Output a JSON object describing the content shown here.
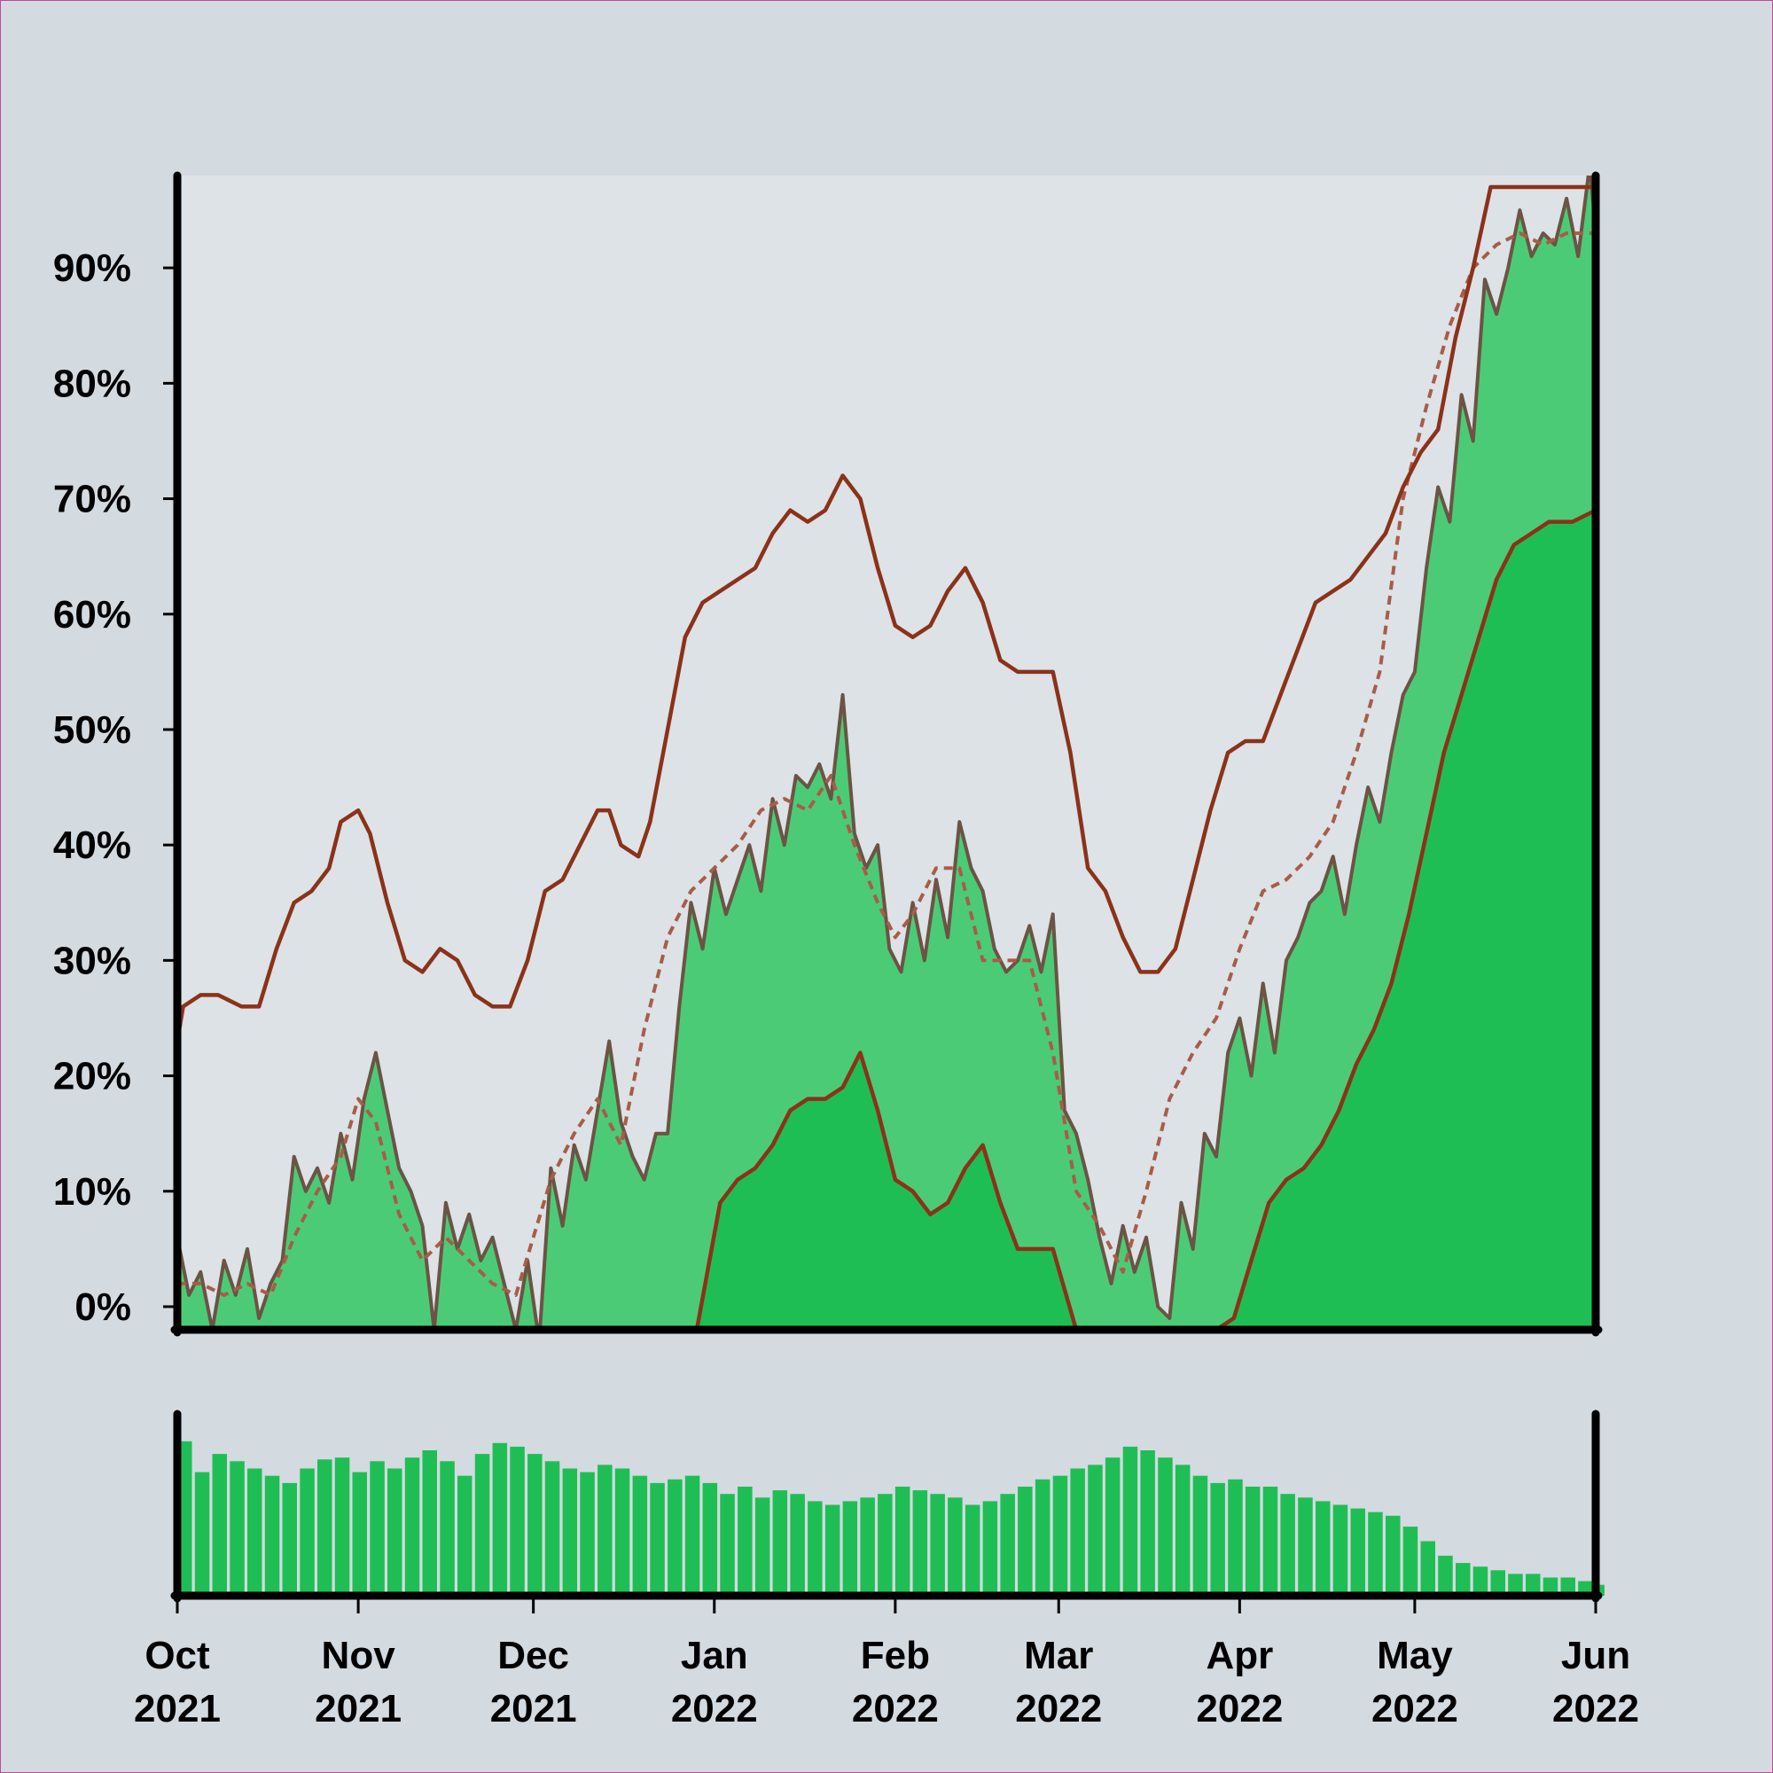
{
  "colors": {
    "background": "#d3dae0",
    "plot_background": "#dde3e7",
    "ci_band": "#dce2e6",
    "mid_fill": "#4ccb77",
    "low_fill": "#1fbe55",
    "raw_line": "#6b5443",
    "ci_line": "#8b3219",
    "trend_line": "#a85c48",
    "volume_bar": "#1fbe55",
    "axis": "#000000",
    "frame_border": "#c04a9a"
  },
  "chart_data": [
    {
      "type": "area",
      "title": "",
      "xlabel": "",
      "ylabel": "",
      "xlim": [
        "2021-10-01",
        "2022-06-01"
      ],
      "ylim": [
        -2,
        98
      ],
      "y_unit": "%",
      "grid": false,
      "legend": "none",
      "y_ticks": [
        0,
        10,
        20,
        30,
        40,
        50,
        60,
        70,
        80,
        90
      ],
      "y_tick_labels": [
        "0%",
        "10%",
        "20%",
        "30%",
        "40%",
        "50%",
        "60%",
        "70%",
        "80%",
        "90%"
      ],
      "x_ticks": [
        "2021-10-01",
        "2021-11-01",
        "2021-12-01",
        "2022-01-01",
        "2022-02-01",
        "2022-03-01",
        "2022-04-01",
        "2022-05-01",
        "2022-06-01"
      ],
      "x_tick_labels": [
        {
          "month": "Oct",
          "year": "2021"
        },
        {
          "month": "Nov",
          "year": "2021"
        },
        {
          "month": "Dec",
          "year": "2021"
        },
        {
          "month": "Jan",
          "year": "2022"
        },
        {
          "month": "Feb",
          "year": "2022"
        },
        {
          "month": "Mar",
          "year": "2022"
        },
        {
          "month": "Apr",
          "year": "2022"
        },
        {
          "month": "May",
          "year": "2022"
        },
        {
          "month": "Jun",
          "year": "2022"
        }
      ],
      "series": [
        {
          "role": "upper_bound",
          "x": [
            "2021-10-01",
            "2021-10-02",
            "2021-10-05",
            "2021-10-08",
            "2021-10-12",
            "2021-10-15",
            "2021-10-18",
            "2021-10-21",
            "2021-10-24",
            "2021-10-27",
            "2021-10-29",
            "2021-11-01",
            "2021-11-03",
            "2021-11-06",
            "2021-11-09",
            "2021-11-12",
            "2021-11-15",
            "2021-11-18",
            "2021-11-21",
            "2021-11-24",
            "2021-11-27",
            "2021-11-30",
            "2021-12-03",
            "2021-12-06",
            "2021-12-09",
            "2021-12-12",
            "2021-12-14",
            "2021-12-16",
            "2021-12-19",
            "2021-12-21",
            "2021-12-24",
            "2021-12-27",
            "2021-12-30",
            "2022-01-02",
            "2022-01-05",
            "2022-01-08",
            "2022-01-11",
            "2022-01-14",
            "2022-01-17",
            "2022-01-20",
            "2022-01-23",
            "2022-01-26",
            "2022-01-29",
            "2022-02-01",
            "2022-02-04",
            "2022-02-07",
            "2022-02-10",
            "2022-02-13",
            "2022-02-16",
            "2022-02-19",
            "2022-02-22",
            "2022-02-25",
            "2022-02-28",
            "2022-03-03",
            "2022-03-06",
            "2022-03-09",
            "2022-03-12",
            "2022-03-15",
            "2022-03-18",
            "2022-03-21",
            "2022-03-24",
            "2022-03-27",
            "2022-03-30",
            "2022-04-02",
            "2022-04-05",
            "2022-04-08",
            "2022-04-11",
            "2022-04-14",
            "2022-04-17",
            "2022-04-20",
            "2022-04-23",
            "2022-04-26",
            "2022-04-29",
            "2022-05-02",
            "2022-05-05",
            "2022-05-08",
            "2022-05-11",
            "2022-05-14",
            "2022-05-17",
            "2022-05-20",
            "2022-05-24",
            "2022-05-28",
            "2022-06-01"
          ],
          "values": [
            23,
            26,
            27,
            27,
            26,
            26,
            31,
            35,
            36,
            38,
            42,
            43,
            41,
            35,
            30,
            29,
            31,
            30,
            27,
            26,
            26,
            30,
            36,
            37,
            40,
            43,
            43,
            40,
            39,
            42,
            50,
            58,
            61,
            62,
            63,
            64,
            67,
            69,
            68,
            69,
            72,
            70,
            64,
            59,
            58,
            59,
            62,
            64,
            61,
            56,
            55,
            55,
            55,
            48,
            38,
            36,
            32,
            29,
            29,
            31,
            37,
            43,
            48,
            49,
            49,
            53,
            57,
            61,
            62,
            63,
            65,
            67,
            71,
            74,
            76,
            84,
            90,
            97,
            97,
            97,
            97,
            97,
            97
          ]
        },
        {
          "role": "raw_estimate",
          "x": [
            "2021-10-01",
            "2021-10-03",
            "2021-10-05",
            "2021-10-07",
            "2021-10-09",
            "2021-10-11",
            "2021-10-13",
            "2021-10-15",
            "2021-10-17",
            "2021-10-19",
            "2021-10-21",
            "2021-10-23",
            "2021-10-25",
            "2021-10-27",
            "2021-10-29",
            "2021-10-31",
            "2021-11-02",
            "2021-11-04",
            "2021-11-06",
            "2021-11-08",
            "2021-11-10",
            "2021-11-12",
            "2021-11-14",
            "2021-11-16",
            "2021-11-18",
            "2021-11-20",
            "2021-11-22",
            "2021-11-24",
            "2021-11-26",
            "2021-11-28",
            "2021-11-30",
            "2021-12-02",
            "2021-12-04",
            "2021-12-06",
            "2021-12-08",
            "2021-12-10",
            "2021-12-12",
            "2021-12-14",
            "2021-12-16",
            "2021-12-18",
            "2021-12-20",
            "2021-12-22",
            "2021-12-24",
            "2021-12-26",
            "2021-12-28",
            "2021-12-30",
            "2022-01-01",
            "2022-01-03",
            "2022-01-05",
            "2022-01-07",
            "2022-01-09",
            "2022-01-11",
            "2022-01-13",
            "2022-01-15",
            "2022-01-17",
            "2022-01-19",
            "2022-01-21",
            "2022-01-23",
            "2022-01-25",
            "2022-01-27",
            "2022-01-29",
            "2022-01-31",
            "2022-02-02",
            "2022-02-04",
            "2022-02-06",
            "2022-02-08",
            "2022-02-10",
            "2022-02-12",
            "2022-02-14",
            "2022-02-16",
            "2022-02-18",
            "2022-02-20",
            "2022-02-22",
            "2022-02-24",
            "2022-02-26",
            "2022-02-28",
            "2022-03-02",
            "2022-03-04",
            "2022-03-06",
            "2022-03-08",
            "2022-03-10",
            "2022-03-12",
            "2022-03-14",
            "2022-03-16",
            "2022-03-18",
            "2022-03-20",
            "2022-03-22",
            "2022-03-24",
            "2022-03-26",
            "2022-03-28",
            "2022-03-30",
            "2022-04-01",
            "2022-04-03",
            "2022-04-05",
            "2022-04-07",
            "2022-04-09",
            "2022-04-11",
            "2022-04-13",
            "2022-04-15",
            "2022-04-17",
            "2022-04-19",
            "2022-04-21",
            "2022-04-23",
            "2022-04-25",
            "2022-04-27",
            "2022-04-29",
            "2022-05-01",
            "2022-05-03",
            "2022-05-05",
            "2022-05-07",
            "2022-05-09",
            "2022-05-11",
            "2022-05-13",
            "2022-05-15",
            "2022-05-17",
            "2022-05-19",
            "2022-05-21",
            "2022-05-23",
            "2022-05-25",
            "2022-05-27",
            "2022-05-29",
            "2022-05-31",
            "2022-06-01"
          ],
          "values": [
            6,
            1,
            3,
            -2,
            4,
            1,
            5,
            -1,
            2,
            4,
            13,
            10,
            12,
            9,
            15,
            11,
            18,
            22,
            17,
            12,
            10,
            7,
            -2,
            9,
            5,
            8,
            4,
            6,
            2,
            -2,
            4,
            -3,
            12,
            7,
            14,
            11,
            17,
            23,
            16,
            13,
            11,
            15,
            15,
            26,
            35,
            31,
            38,
            34,
            37,
            40,
            36,
            44,
            40,
            46,
            45,
            47,
            44,
            53,
            41,
            38,
            40,
            31,
            29,
            35,
            30,
            37,
            32,
            42,
            38,
            36,
            31,
            29,
            30,
            33,
            29,
            34,
            17,
            15,
            11,
            6,
            2,
            7,
            3,
            6,
            0,
            -1,
            9,
            5,
            15,
            13,
            22,
            25,
            20,
            28,
            22,
            30,
            32,
            35,
            36,
            39,
            34,
            40,
            45,
            42,
            48,
            53,
            55,
            64,
            71,
            68,
            79,
            75,
            89,
            86,
            90,
            95,
            91,
            93,
            92,
            96,
            91,
            99,
            93
          ]
        },
        {
          "role": "smoothed_trend",
          "x": [
            "2021-10-01",
            "2021-10-05",
            "2021-10-09",
            "2021-10-13",
            "2021-10-17",
            "2021-10-21",
            "2021-10-25",
            "2021-10-29",
            "2021-11-01",
            "2021-11-04",
            "2021-11-08",
            "2021-11-12",
            "2021-11-16",
            "2021-11-20",
            "2021-11-24",
            "2021-11-28",
            "2021-12-01",
            "2021-12-04",
            "2021-12-08",
            "2021-12-12",
            "2021-12-16",
            "2021-12-20",
            "2021-12-24",
            "2021-12-28",
            "2022-01-01",
            "2022-01-05",
            "2022-01-09",
            "2022-01-13",
            "2022-01-17",
            "2022-01-21",
            "2022-01-25",
            "2022-01-29",
            "2022-02-01",
            "2022-02-04",
            "2022-02-08",
            "2022-02-12",
            "2022-02-16",
            "2022-02-20",
            "2022-02-24",
            "2022-02-28",
            "2022-03-04",
            "2022-03-08",
            "2022-03-12",
            "2022-03-16",
            "2022-03-20",
            "2022-03-24",
            "2022-03-28",
            "2022-04-01",
            "2022-04-05",
            "2022-04-09",
            "2022-04-13",
            "2022-04-17",
            "2022-04-21",
            "2022-04-25",
            "2022-04-29",
            "2022-05-03",
            "2022-05-07",
            "2022-05-11",
            "2022-05-15",
            "2022-05-19",
            "2022-05-23",
            "2022-05-27",
            "2022-06-01"
          ],
          "values": [
            2,
            2,
            1,
            2,
            1,
            6,
            10,
            13,
            18,
            16,
            8,
            4,
            6,
            4,
            2,
            1,
            6,
            11,
            15,
            18,
            14,
            24,
            32,
            36,
            38,
            40,
            43,
            44,
            43,
            46,
            40,
            35,
            32,
            34,
            38,
            38,
            30,
            30,
            30,
            22,
            10,
            7,
            3,
            10,
            18,
            22,
            25,
            31,
            36,
            37,
            39,
            42,
            48,
            55,
            70,
            78,
            85,
            90,
            92,
            93,
            92,
            93,
            93
          ]
        },
        {
          "role": "lower_bound",
          "x": [
            "2021-12-29",
            "2022-01-02",
            "2022-01-05",
            "2022-01-08",
            "2022-01-11",
            "2022-01-14",
            "2022-01-17",
            "2022-01-20",
            "2022-01-23",
            "2022-01-26",
            "2022-01-29",
            "2022-02-01",
            "2022-02-04",
            "2022-02-07",
            "2022-02-10",
            "2022-02-13",
            "2022-02-16",
            "2022-02-19",
            "2022-02-22",
            "2022-02-25",
            "2022-02-28",
            "2022-03-04",
            "2022-03-28",
            "2022-03-31",
            "2022-04-03",
            "2022-04-06",
            "2022-04-09",
            "2022-04-12",
            "2022-04-15",
            "2022-04-18",
            "2022-04-21",
            "2022-04-24",
            "2022-04-27",
            "2022-04-30",
            "2022-05-03",
            "2022-05-06",
            "2022-05-09",
            "2022-05-12",
            "2022-05-15",
            "2022-05-18",
            "2022-05-21",
            "2022-05-24",
            "2022-05-28",
            "2022-06-01"
          ],
          "values": [
            -2,
            9,
            11,
            12,
            14,
            17,
            18,
            18,
            19,
            22,
            17,
            11,
            10,
            8,
            9,
            12,
            14,
            9,
            5,
            5,
            5,
            -2,
            -2,
            -1,
            4,
            9,
            11,
            12,
            14,
            17,
            21,
            24,
            28,
            34,
            41,
            48,
            53,
            58,
            63,
            66,
            67,
            68,
            68,
            69
          ]
        }
      ]
    },
    {
      "type": "bar",
      "title": "",
      "xlabel": "",
      "ylabel": "",
      "xlim": [
        "2021-10-01",
        "2022-06-01"
      ],
      "ylim": [
        0,
        100
      ],
      "grid": false,
      "legend": "none",
      "x": [
        "2021-10-01",
        "2021-10-04",
        "2021-10-07",
        "2021-10-10",
        "2021-10-13",
        "2021-10-16",
        "2021-10-19",
        "2021-10-22",
        "2021-10-25",
        "2021-10-28",
        "2021-10-31",
        "2021-11-03",
        "2021-11-06",
        "2021-11-09",
        "2021-11-12",
        "2021-11-15",
        "2021-11-18",
        "2021-11-21",
        "2021-11-24",
        "2021-11-27",
        "2021-11-30",
        "2021-12-03",
        "2021-12-06",
        "2021-12-09",
        "2021-12-12",
        "2021-12-15",
        "2021-12-18",
        "2021-12-21",
        "2021-12-24",
        "2021-12-27",
        "2021-12-30",
        "2022-01-02",
        "2022-01-05",
        "2022-01-08",
        "2022-01-11",
        "2022-01-14",
        "2022-01-17",
        "2022-01-20",
        "2022-01-23",
        "2022-01-26",
        "2022-01-29",
        "2022-02-01",
        "2022-02-04",
        "2022-02-07",
        "2022-02-10",
        "2022-02-13",
        "2022-02-16",
        "2022-02-19",
        "2022-02-22",
        "2022-02-25",
        "2022-02-28",
        "2022-03-03",
        "2022-03-06",
        "2022-03-09",
        "2022-03-12",
        "2022-03-15",
        "2022-03-18",
        "2022-03-21",
        "2022-03-24",
        "2022-03-27",
        "2022-03-30",
        "2022-04-02",
        "2022-04-05",
        "2022-04-08",
        "2022-04-11",
        "2022-04-14",
        "2022-04-17",
        "2022-04-20",
        "2022-04-23",
        "2022-04-26",
        "2022-04-29",
        "2022-05-02",
        "2022-05-05",
        "2022-05-08",
        "2022-05-11",
        "2022-05-14",
        "2022-05-17",
        "2022-05-20",
        "2022-05-23",
        "2022-05-26",
        "2022-05-29",
        "2022-05-31"
      ],
      "values": [
        85,
        68,
        78,
        74,
        70,
        66,
        62,
        70,
        75,
        76,
        68,
        74,
        70,
        76,
        80,
        74,
        66,
        78,
        84,
        82,
        78,
        74,
        70,
        68,
        72,
        70,
        66,
        62,
        64,
        66,
        62,
        56,
        60,
        54,
        58,
        56,
        52,
        50,
        52,
        54,
        56,
        60,
        58,
        56,
        54,
        50,
        52,
        56,
        60,
        64,
        66,
        70,
        72,
        76,
        82,
        80,
        76,
        72,
        66,
        62,
        64,
        60,
        60,
        56,
        54,
        52,
        50,
        48,
        46,
        44,
        38,
        30,
        22,
        18,
        16,
        14,
        12,
        12,
        10,
        10,
        8,
        6
      ]
    }
  ]
}
